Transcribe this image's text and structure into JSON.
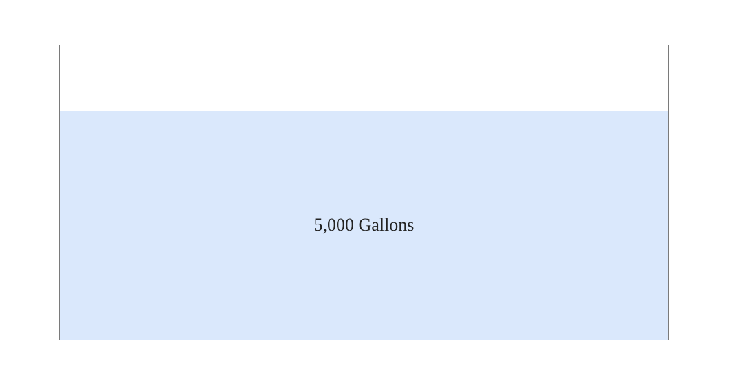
{
  "tank": {
    "fill_fraction": 0.777,
    "colors": {
      "outline": "#7a7a7a",
      "water_fill": "#dae8fc",
      "water_line": "#7d9ccc",
      "empty_fill": "#ffffff"
    }
  },
  "water": {
    "label": "5,000 Gallons"
  }
}
